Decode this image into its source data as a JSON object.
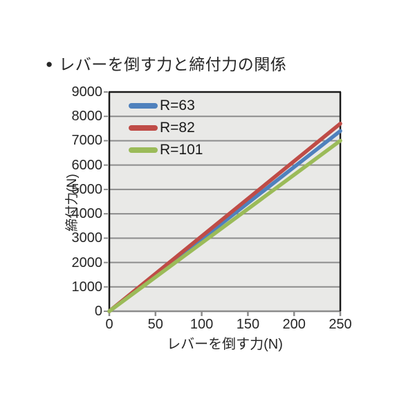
{
  "title": {
    "bullet": "●",
    "text": "レバーを倒す力と締付力の関係"
  },
  "chart_data": {
    "type": "line",
    "title": "レバーを倒す力と締付力の関係",
    "xlabel": "レバーを倒す力(N)",
    "ylabel": "締付力(N)",
    "xlim": [
      0,
      250
    ],
    "ylim": [
      0,
      9000
    ],
    "xticks": [
      0,
      50,
      100,
      150,
      200,
      250
    ],
    "yticks": [
      0,
      1000,
      2000,
      3000,
      4000,
      5000,
      6000,
      7000,
      8000,
      9000
    ],
    "grid": "horizontal",
    "legend_position": "top-left-inside",
    "series": [
      {
        "name": "R=63",
        "color": "#4f81bd",
        "x": [
          0,
          250
        ],
        "y": [
          0,
          7400
        ]
      },
      {
        "name": "R=82",
        "color": "#bf4c47",
        "x": [
          0,
          250
        ],
        "y": [
          0,
          7700
        ]
      },
      {
        "name": "R=101",
        "color": "#9bbb59",
        "x": [
          0,
          250
        ],
        "y": [
          0,
          7000
        ]
      }
    ],
    "legend_order": [
      "R=63",
      "R=82",
      "R=101"
    ]
  },
  "colors": {
    "plot_background": "#e9e9e7",
    "gridline": "#8c8c8c",
    "axis_border": "#1a1a1a",
    "bottom_axis": "#8c8c8c",
    "text": "#262626",
    "page_background": "#ffffff"
  }
}
